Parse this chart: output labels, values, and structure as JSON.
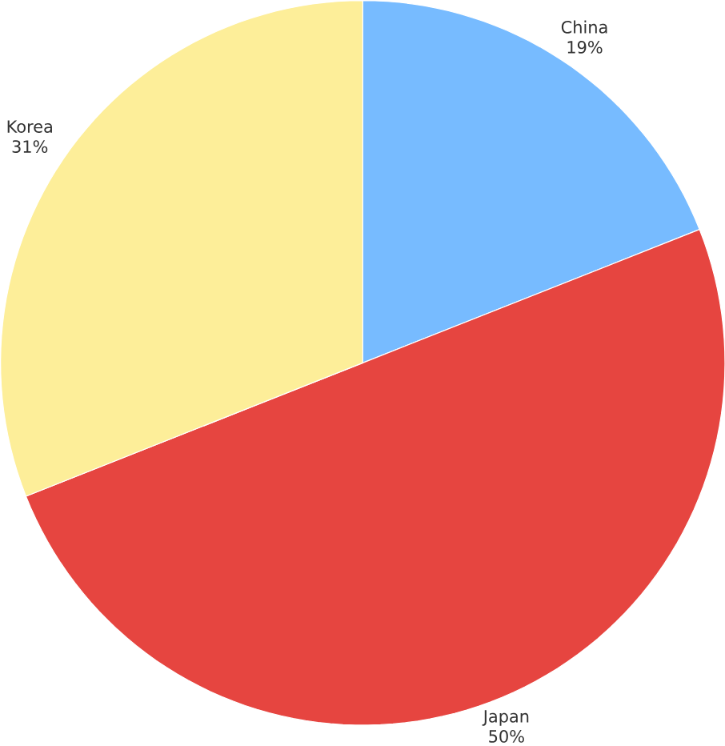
{
  "chart_data": {
    "type": "pie",
    "categories": [
      "China",
      "Japan",
      "Korea"
    ],
    "values": [
      19,
      50,
      31
    ],
    "value_labels": [
      "19%",
      "50%",
      "31%"
    ],
    "colors": [
      "#77bbff",
      "#e64540",
      "#fdee99"
    ]
  }
}
